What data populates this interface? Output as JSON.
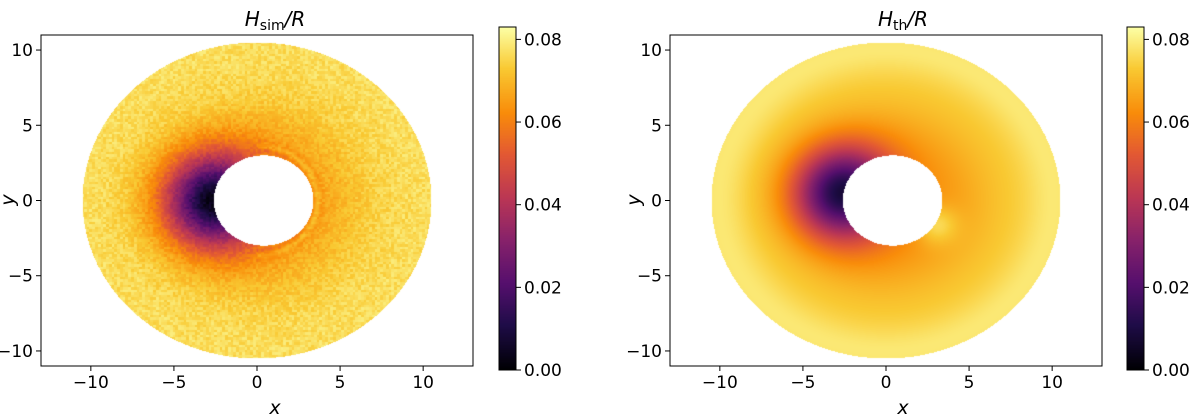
{
  "chart_data": [
    {
      "type": "heatmap",
      "title": "H_sim/R",
      "title_main": "H",
      "title_sub": "sim",
      "title_tail": "/R",
      "xlabel": "x",
      "ylabel": "y",
      "xlim": [
        -13,
        13
      ],
      "ylim": [
        -11,
        11
      ],
      "xticks": [
        -10,
        -5,
        0,
        5,
        10
      ],
      "xtick_labels": [
        "−10",
        "−5",
        "0",
        "5",
        "10"
      ],
      "yticks": [
        -10,
        -5,
        0,
        5,
        10
      ],
      "ytick_labels": [
        "−10",
        "−5",
        "0",
        "5",
        "10"
      ],
      "grid": false,
      "colormap": "inferno",
      "colorbar": {
        "range": [
          0,
          0.083
        ],
        "ticks": [
          0,
          0.02,
          0.04,
          0.06,
          0.08
        ],
        "tick_labels": [
          "0.00",
          "0.02",
          "0.04",
          "0.06",
          "0.08"
        ]
      },
      "domain": {
        "shape": "annulus",
        "center": [
          0,
          0
        ],
        "inner_radius": 3.0,
        "outer_radius": 10.5,
        "inner_center": [
          0.4,
          0.0
        ]
      },
      "value_model": {
        "description_values": "azimuthal/radial H/R field",
        "min_value_location": [
          -2.5,
          0.0
        ],
        "min_value": 0.012,
        "outer_value": 0.077,
        "inner_right_value": 0.069
      }
    },
    {
      "type": "heatmap",
      "title": "H_th/R",
      "title_main": "H",
      "title_sub": "th",
      "title_tail": "/R",
      "xlabel": "x",
      "ylabel": "y",
      "xlim": [
        -13,
        13
      ],
      "ylim": [
        -11,
        11
      ],
      "xticks": [
        -10,
        -5,
        0,
        5,
        10
      ],
      "xtick_labels": [
        "−10",
        "−5",
        "0",
        "5",
        "10"
      ],
      "yticks": [
        -10,
        -5,
        0,
        5,
        10
      ],
      "ytick_labels": [
        "−10",
        "−5",
        "0",
        "5",
        "10"
      ],
      "grid": false,
      "colormap": "inferno",
      "colorbar": {
        "range": [
          0,
          0.083
        ],
        "ticks": [
          0,
          0.02,
          0.04,
          0.06,
          0.08
        ],
        "tick_labels": [
          "0.00",
          "0.02",
          "0.04",
          "0.06",
          "0.08"
        ]
      },
      "domain": {
        "shape": "annulus",
        "center": [
          0,
          0
        ],
        "inner_radius": 3.0,
        "outer_radius": 10.5,
        "inner_center": [
          0.4,
          0.0
        ]
      },
      "value_model": {
        "min_value_location": [
          -2.5,
          0.5
        ],
        "min_value": 0.018,
        "outer_value": 0.075,
        "inner_right_value": 0.083
      }
    }
  ]
}
